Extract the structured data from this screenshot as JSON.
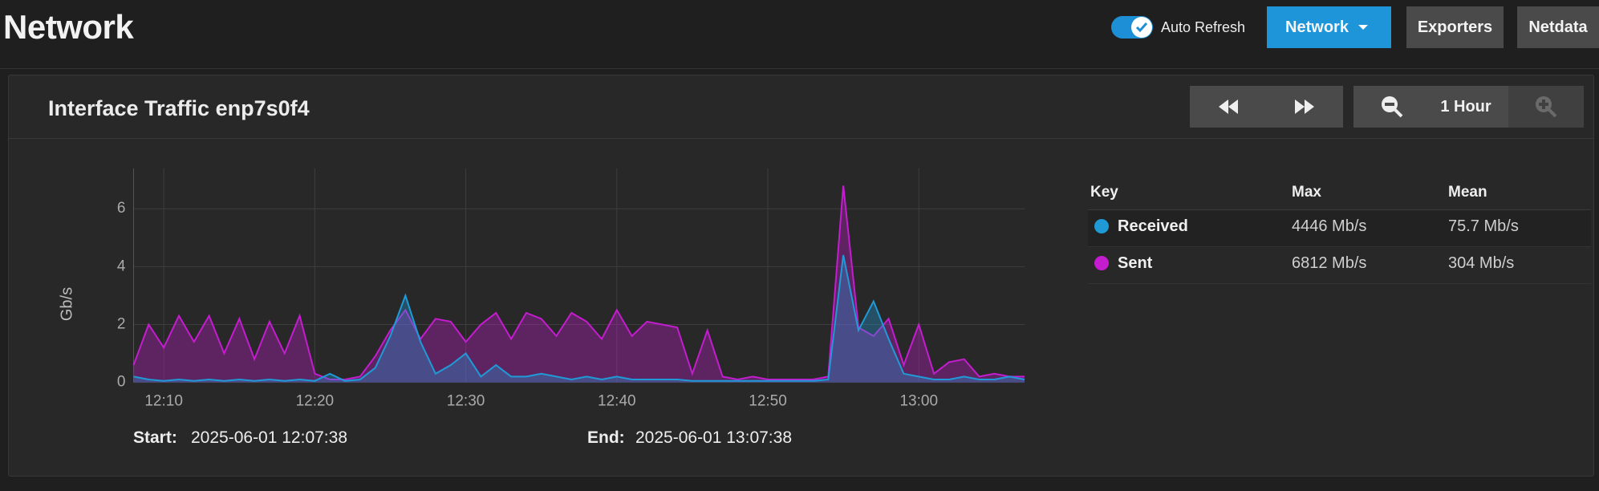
{
  "header": {
    "title": "Network",
    "auto_refresh_label": "Auto Refresh",
    "buttons": [
      "Network",
      "Exporters",
      "Netdata"
    ]
  },
  "card": {
    "title": "Interface Traffic enp7s0f4",
    "zoom_label": "1 Hour",
    "start_label": "Start:",
    "start": "2025-06-01 12:07:38",
    "end_label": "End:",
    "end": "2025-06-01 13:07:38"
  },
  "stats_table": {
    "columns": [
      "Key",
      "Max",
      "Mean"
    ],
    "rows": [
      {
        "max": "4446 Mb/s",
        "mean": "75.7 Mb/s"
      },
      {
        "max": "6812 Mb/s",
        "mean": "304 Mb/s"
      }
    ]
  },
  "chart_data": {
    "type": "line",
    "y_label": "Gb/s",
    "x": [
      "12:08",
      "12:09",
      "12:10",
      "12:11",
      "12:12",
      "12:13",
      "12:14",
      "12:15",
      "12:16",
      "12:17",
      "12:18",
      "12:19",
      "12:20",
      "12:21",
      "12:22",
      "12:23",
      "12:24",
      "12:25",
      "12:26",
      "12:27",
      "12:28",
      "12:29",
      "12:30",
      "12:31",
      "12:32",
      "12:33",
      "12:34",
      "12:35",
      "12:36",
      "12:37",
      "12:38",
      "12:39",
      "12:40",
      "12:41",
      "12:42",
      "12:43",
      "12:44",
      "12:45",
      "12:46",
      "12:47",
      "12:48",
      "12:49",
      "12:50",
      "12:51",
      "12:52",
      "12:53",
      "12:54",
      "12:55",
      "12:56",
      "12:57",
      "12:58",
      "12:59",
      "13:00",
      "13:01",
      "13:02",
      "13:03",
      "13:04",
      "13:05",
      "13:06",
      "13:07"
    ],
    "xticks": [
      "12:10",
      "12:20",
      "12:30",
      "12:40",
      "12:50",
      "13:00"
    ],
    "ylim": [
      0,
      7.4
    ],
    "yticks": [
      0,
      2,
      4,
      6
    ],
    "grid": true,
    "series": [
      {
        "name": "Sent",
        "color": "#c41ccf",
        "values": [
          0.6,
          2.0,
          1.2,
          2.3,
          1.4,
          2.3,
          1.0,
          2.2,
          0.8,
          2.1,
          1.0,
          2.3,
          0.3,
          0.1,
          0.1,
          0.2,
          0.9,
          1.8,
          2.5,
          1.5,
          2.2,
          2.1,
          1.4,
          2.0,
          2.4,
          1.5,
          2.4,
          2.2,
          1.6,
          2.4,
          2.1,
          1.5,
          2.5,
          1.6,
          2.1,
          2.0,
          1.9,
          0.3,
          1.8,
          0.2,
          0.1,
          0.2,
          0.1,
          0.1,
          0.1,
          0.1,
          0.2,
          6.8,
          1.9,
          1.6,
          2.2,
          0.6,
          2.0,
          0.3,
          0.7,
          0.8,
          0.2,
          0.3,
          0.2,
          0.2
        ]
      },
      {
        "name": "Received",
        "color": "#1f9ad6",
        "values": [
          0.2,
          0.1,
          0.05,
          0.1,
          0.05,
          0.1,
          0.05,
          0.1,
          0.05,
          0.1,
          0.05,
          0.1,
          0.05,
          0.3,
          0.05,
          0.1,
          0.5,
          1.6,
          3.0,
          1.4,
          0.3,
          0.6,
          1.0,
          0.2,
          0.6,
          0.2,
          0.2,
          0.3,
          0.2,
          0.1,
          0.2,
          0.1,
          0.2,
          0.1,
          0.1,
          0.1,
          0.1,
          0.05,
          0.05,
          0.05,
          0.05,
          0.05,
          0.05,
          0.05,
          0.05,
          0.05,
          0.1,
          4.4,
          1.8,
          2.8,
          1.5,
          0.3,
          0.2,
          0.1,
          0.1,
          0.2,
          0.1,
          0.1,
          0.2,
          0.1
        ]
      }
    ]
  }
}
